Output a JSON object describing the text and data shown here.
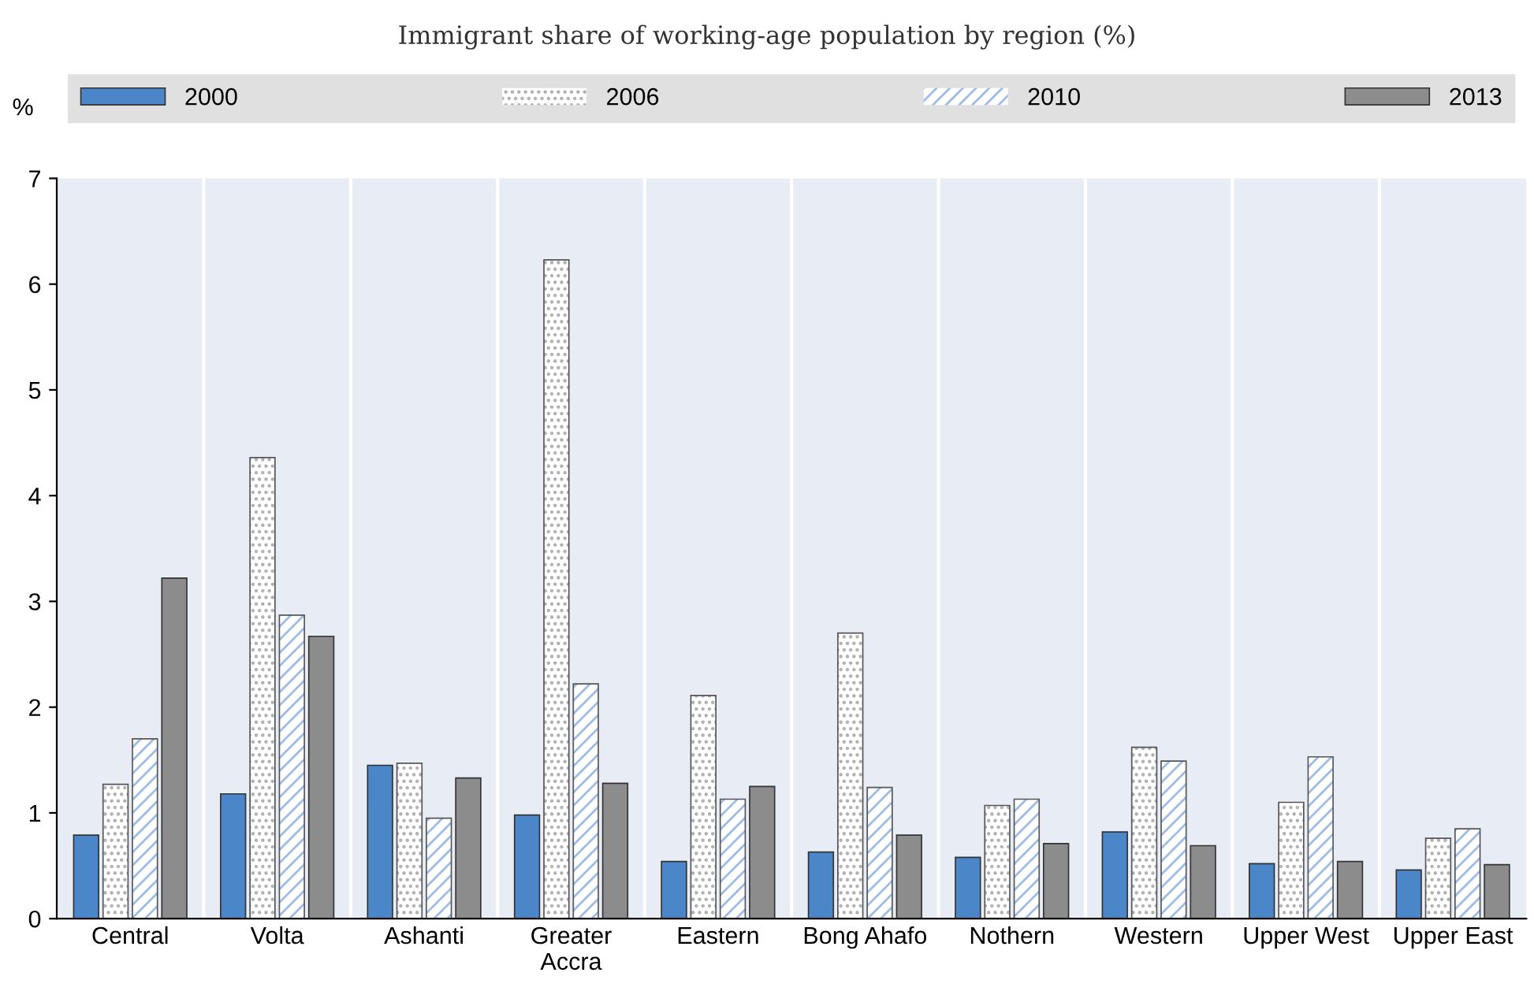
{
  "chart_data": {
    "type": "bar",
    "title": "Immigrant share of working-age population by region (%)",
    "ylabel": "%",
    "categories": [
      "Central",
      "Volta",
      "Ashanti",
      "Greater\nAccra",
      "Eastern",
      "Bong Ahafo",
      "Nothern",
      "Western",
      "Upper West",
      "Upper East"
    ],
    "series": [
      {
        "name": "2000",
        "color": "#4a86c8",
        "values": [
          0.79,
          1.18,
          1.45,
          0.98,
          0.54,
          0.63,
          0.58,
          0.82,
          0.52,
          0.46
        ]
      },
      {
        "name": "2006",
        "color": "#b0b0b0",
        "values": [
          1.27,
          4.36,
          1.47,
          6.23,
          2.11,
          2.7,
          1.07,
          1.62,
          1.1,
          0.76
        ]
      },
      {
        "name": "2010",
        "color": "#9dbde6",
        "values": [
          1.7,
          2.87,
          0.95,
          2.22,
          1.13,
          1.24,
          1.13,
          1.49,
          1.53,
          0.85
        ]
      },
      {
        "name": "2013",
        "color": "#8c8c8c",
        "values": [
          3.22,
          2.67,
          1.33,
          1.28,
          1.25,
          0.79,
          0.71,
          0.69,
          0.54,
          0.51
        ]
      }
    ],
    "ylim": [
      0,
      7
    ],
    "yticks": [
      0,
      1,
      2,
      3,
      4,
      5,
      6,
      7
    ],
    "grid": "x",
    "legend": "top"
  }
}
